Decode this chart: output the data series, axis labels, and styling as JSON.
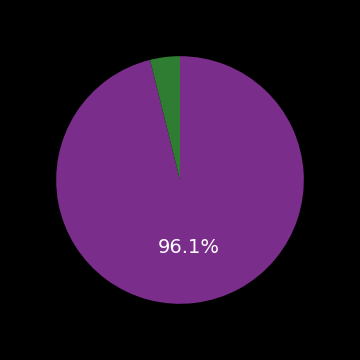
{
  "slices": [
    96.1,
    3.9
  ],
  "colors": [
    "#7B2D8B",
    "#2E7D32"
  ],
  "label_text": "96.1%",
  "label_color": "#ffffff",
  "label_fontsize": 14,
  "background_color": "#000000",
  "startangle": 90,
  "figsize": [
    3.6,
    3.6
  ],
  "dpi": 100
}
